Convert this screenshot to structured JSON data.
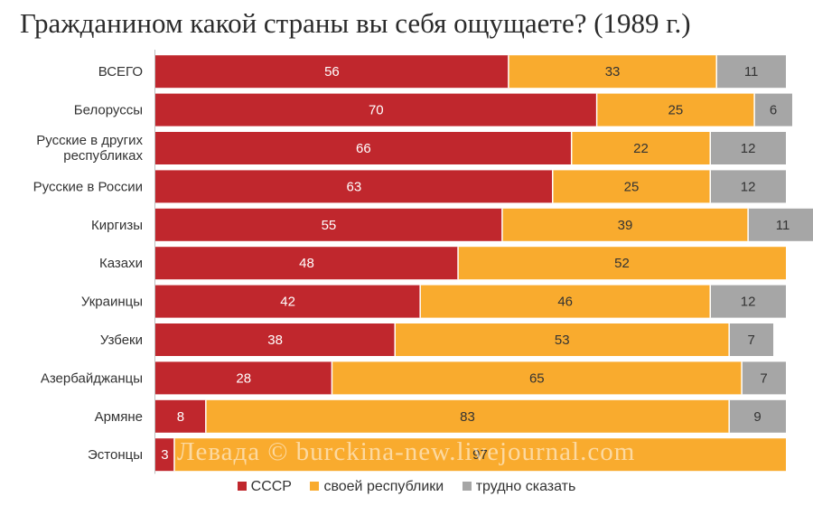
{
  "chart_data": {
    "type": "bar",
    "orientation": "horizontal",
    "stacked": true,
    "title": "Гражданином какой страны вы себя ощущаете? (1989 г.)",
    "xlim": [
      0,
      100
    ],
    "grid": false,
    "legend_position": "bottom",
    "categories": [
      "ВСЕГО",
      "Белорусcы",
      "Русские в других республиках",
      "Русские в России",
      "Киргизы",
      "Казахи",
      "Украинцы",
      "Узбеки",
      "Азербайджанцы",
      "Армяне",
      "Эстонцы"
    ],
    "category_lines": [
      [
        "ВСЕГО"
      ],
      [
        "Белоруссы"
      ],
      [
        "Русские в других",
        "республиках"
      ],
      [
        "Русские в России"
      ],
      [
        "Киргизы"
      ],
      [
        "Казахи"
      ],
      [
        "Украинцы"
      ],
      [
        "Узбеки"
      ],
      [
        "Азербайджанцы"
      ],
      [
        "Армяне"
      ],
      [
        "Эстонцы"
      ]
    ],
    "series": [
      {
        "name": "СССР",
        "color": "#c0272d",
        "label_color": "#ffffff",
        "values": [
          56,
          70,
          66,
          63,
          55,
          48,
          42,
          38,
          28,
          8,
          3
        ]
      },
      {
        "name": "своей республики",
        "color": "#f9ab2e",
        "label_color": "#333333",
        "values": [
          33,
          25,
          22,
          25,
          39,
          52,
          46,
          53,
          65,
          83,
          97
        ]
      },
      {
        "name": "трудно сказать",
        "color": "#a6a6a6",
        "label_color": "#333333",
        "values": [
          11,
          6,
          12,
          12,
          11,
          0,
          12,
          7,
          7,
          9,
          0
        ]
      }
    ]
  },
  "watermark": "Левада © burckina-new.livejournal.com"
}
